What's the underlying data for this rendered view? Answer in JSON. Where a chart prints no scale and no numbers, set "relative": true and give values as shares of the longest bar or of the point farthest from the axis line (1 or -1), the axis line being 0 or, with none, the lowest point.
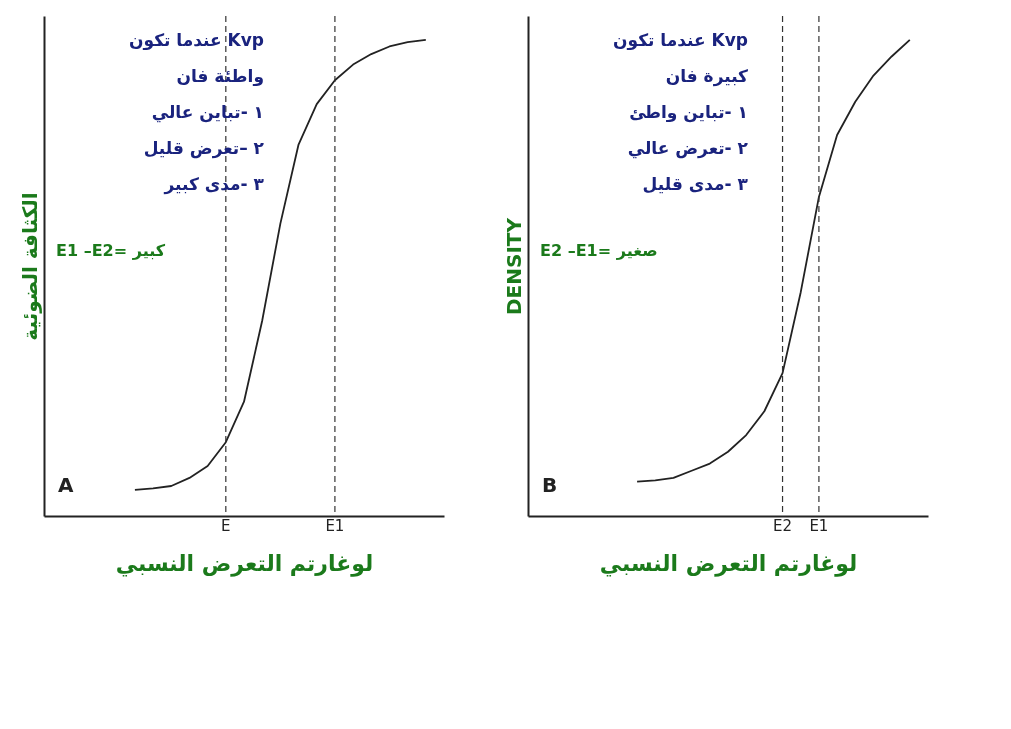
{
  "chart_data": [
    {
      "type": "line",
      "relative": true,
      "xlabel": "لوغارتم التعرض النسبي",
      "ylabel": "الكثافة الضوئية",
      "grid": false,
      "marker": "none",
      "categories": [
        null,
        null,
        null,
        null,
        null,
        null,
        null,
        null,
        null,
        "E",
        null,
        null,
        null,
        null,
        null,
        "E1",
        null,
        null,
        null,
        null,
        null
      ],
      "series": [
        {
          "color": "#222222",
          "values": [
            null,
            null,
            null,
            null,
            0.055,
            0.058,
            0.063,
            0.08,
            0.105,
            0.155,
            0.24,
            0.41,
            0.614,
            0.78,
            0.865,
            0.915,
            0.948,
            0.97,
            0.986,
            0.995,
            1
          ]
        }
      ],
      "ref_lines": [
        {
          "axis": "x",
          "value": "E",
          "line_style": "dashed"
        },
        {
          "axis": "x",
          "value": "E1",
          "line_style": "dashed"
        }
      ],
      "annotations": [
        "عندما تكون Kvp",
        "واطئة فان",
        "١ -تباين عالي",
        "٢ –تعرض قليل",
        "٣ -مدى كبير",
        "E1 –E2= كبير",
        "A"
      ]
    },
    {
      "type": "line",
      "relative": true,
      "xlabel": "لوغارتم التعرض النسبي",
      "ylabel": "DENSITY",
      "grid": false,
      "marker": "none",
      "categories": [
        null,
        null,
        null,
        null,
        null,
        null,
        null,
        null,
        null,
        null,
        null,
        null,
        null,
        "E2",
        null,
        "E1",
        null,
        null,
        null,
        null,
        null
      ],
      "series": [
        {
          "color": "#222222",
          "values": [
            null,
            null,
            null,
            null,
            null,
            0.072,
            0.075,
            0.08,
            0.095,
            0.11,
            0.135,
            0.17,
            0.22,
            0.3,
            0.47,
            0.67,
            0.8,
            0.87,
            0.925,
            0.965,
            1
          ]
        }
      ],
      "ref_lines": [
        {
          "axis": "x",
          "value": "E2",
          "line_style": "dashed"
        },
        {
          "axis": "x",
          "value": "E1",
          "line_style": "dashed"
        }
      ],
      "annotations": [
        "عندما تكون Kvp",
        "كبيرة فان",
        "١ -تباين واطئ",
        "٢ -تعرض عالي",
        "٣ -مدى قليل",
        "E2 –E1= صغير",
        "B"
      ]
    }
  ]
}
